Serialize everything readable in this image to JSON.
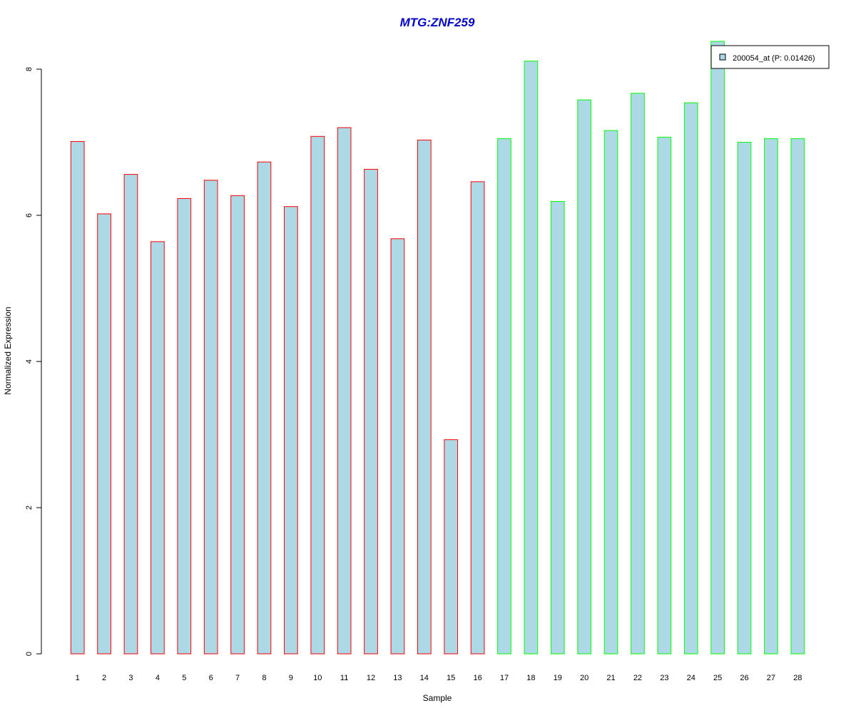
{
  "chart_data": {
    "type": "bar",
    "title": "MTG:ZNF259",
    "xlabel": "Sample",
    "ylabel": "Normalized Expression",
    "ylim": [
      0,
      8.4
    ],
    "yticks": [
      0,
      2,
      4,
      6,
      8
    ],
    "categories": [
      "1",
      "2",
      "3",
      "4",
      "5",
      "6",
      "7",
      "8",
      "9",
      "10",
      "11",
      "12",
      "13",
      "14",
      "15",
      "16",
      "17",
      "18",
      "19",
      "20",
      "21",
      "22",
      "23",
      "24",
      "25",
      "26",
      "27",
      "28"
    ],
    "values": [
      7.01,
      6.02,
      6.56,
      5.64,
      6.23,
      6.48,
      6.27,
      6.73,
      6.12,
      7.08,
      7.2,
      6.63,
      5.68,
      7.03,
      2.93,
      6.46,
      7.05,
      8.11,
      6.19,
      7.58,
      7.16,
      7.67,
      7.07,
      7.54,
      8.38,
      7.0,
      7.05,
      7.05
    ],
    "groups": [
      1,
      1,
      1,
      1,
      1,
      1,
      1,
      1,
      1,
      1,
      1,
      1,
      1,
      1,
      1,
      1,
      2,
      2,
      2,
      2,
      2,
      2,
      2,
      2,
      2,
      2,
      2,
      2
    ],
    "colors": {
      "fill": "#add8e6",
      "group1_border": "#ff0000",
      "group2_border": "#00ff00",
      "title": "#0000cc"
    },
    "legend": {
      "label": "200054_at (P: 0.01426)",
      "position": "top-right"
    },
    "grid": false
  }
}
